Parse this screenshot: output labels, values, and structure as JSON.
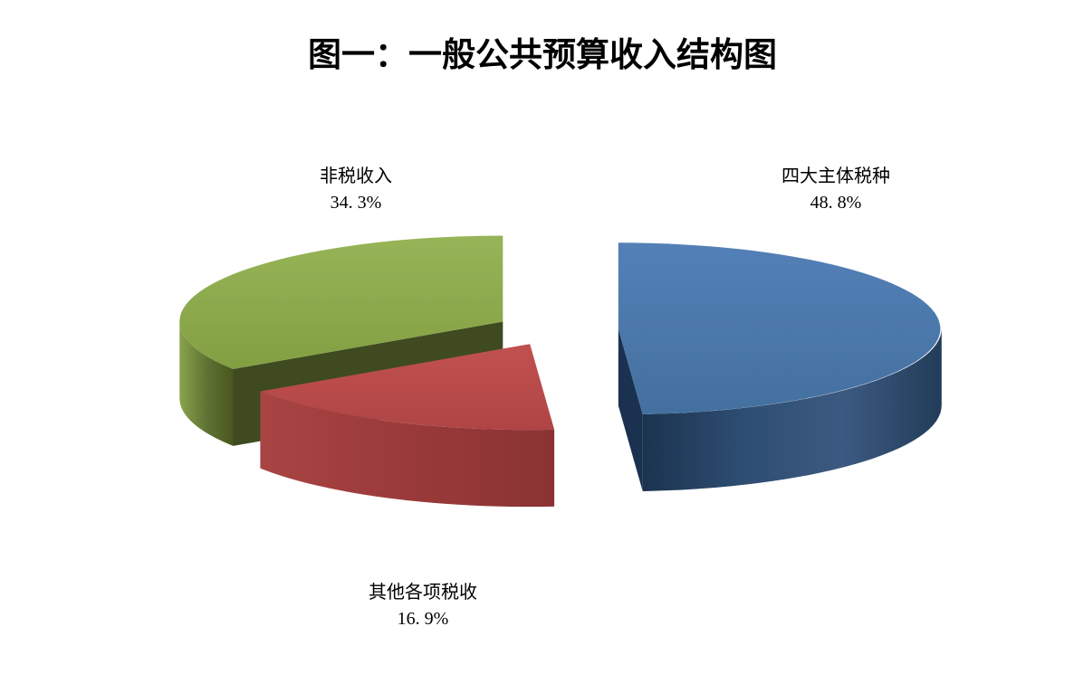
{
  "page": {
    "background": "#ffffff"
  },
  "chart_data": {
    "type": "pie",
    "style": "3d-exploded-pie",
    "title": "图一：一般公共预算收入结构图",
    "direction": "clockwise",
    "start_angle_deg": 0,
    "legend_position": "none",
    "labels_as": "callout-text",
    "slices": [
      {
        "label": "四大主体税种",
        "value": 48.8,
        "display_percent": "48. 8%",
        "top_color": "#4a76ad",
        "top_shades": [
          "#5380b7",
          "#44709f"
        ],
        "side_shades": [
          "#1b334f",
          "#2e4d72",
          "#3c5a81",
          "#223c59"
        ],
        "cut_face_color": "#1b3150"
      },
      {
        "label": "其他各项税收",
        "value": 16.9,
        "display_percent": "16. 9%",
        "top_color": "#bc4b4b",
        "top_shades": [
          "#c15151",
          "#b04444"
        ],
        "side_shades": [
          "#a84444",
          "#9a3a3a",
          "#8a3333"
        ],
        "cut_face_color": "#8c3434"
      },
      {
        "label": "非税收入",
        "value": 34.3,
        "display_percent": "34. 3%",
        "top_color": "#8fad4e",
        "top_shades": [
          "#97b558",
          "#82a042"
        ],
        "side_shades": [
          "#8aa34c",
          "#5f7334",
          "#49561f"
        ],
        "cut_face_color": "#3f4a21"
      }
    ]
  }
}
